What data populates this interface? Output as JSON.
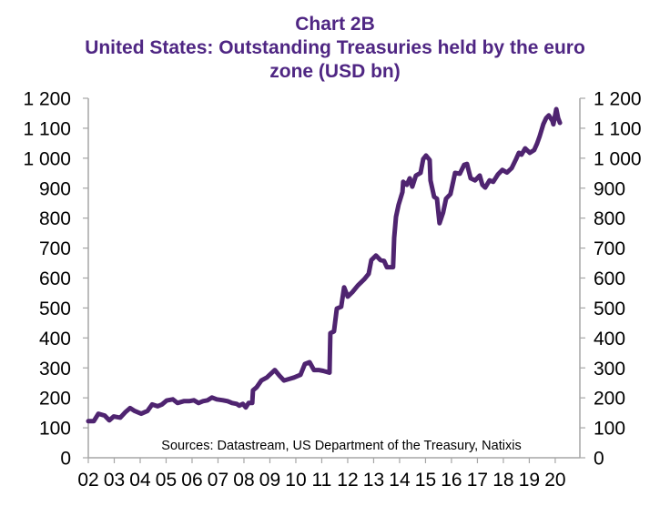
{
  "chart_data": {
    "type": "line",
    "title": "Chart 2B",
    "subtitle_line1": "United States: Outstanding Treasuries held by the euro",
    "subtitle_line2": "zone (USD bn)",
    "xlabel": "",
    "ylabel": "",
    "ylim": [
      0,
      1200
    ],
    "xlim": [
      2002,
      2020.95
    ],
    "grid": false,
    "y_ticks": [
      0,
      100,
      200,
      300,
      400,
      500,
      600,
      700,
      800,
      900,
      1000,
      1100,
      1200
    ],
    "y_tick_labels": [
      "0",
      "100",
      "200",
      "300",
      "400",
      "500",
      "600",
      "700",
      "800",
      "900",
      "1 000",
      "1 100",
      "1 200"
    ],
    "x_ticks": [
      2002,
      2003,
      2004,
      2005,
      2006,
      2007,
      2008,
      2009,
      2010,
      2011,
      2012,
      2013,
      2014,
      2015,
      2016,
      2017,
      2018,
      2019,
      2020
    ],
    "x_tick_labels": [
      "02",
      "03",
      "04",
      "05",
      "06",
      "07",
      "08",
      "09",
      "10",
      "11",
      "12",
      "13",
      "14",
      "15",
      "16",
      "17",
      "18",
      "19",
      "20"
    ],
    "annotation": "Sources: Datastream, US Department of the Treasury, Natixis",
    "series": [
      {
        "name": "Outstanding Treasuries held by the euro zone",
        "color": "#4f2470",
        "x": [
          2002.0,
          2002.21,
          2002.39,
          2002.63,
          2002.81,
          2002.98,
          2003.23,
          2003.44,
          2003.61,
          2003.79,
          2004.04,
          2004.28,
          2004.46,
          2004.67,
          2004.84,
          2005.02,
          2005.26,
          2005.44,
          2005.68,
          2005.89,
          2006.07,
          2006.25,
          2006.42,
          2006.6,
          2006.77,
          2006.95,
          2007.19,
          2007.37,
          2007.54,
          2007.72,
          2007.82,
          2007.96,
          2008.07,
          2008.18,
          2008.32,
          2008.35,
          2008.49,
          2008.67,
          2008.88,
          2009.19,
          2009.37,
          2009.54,
          2009.75,
          2009.93,
          2010.18,
          2010.35,
          2010.53,
          2010.7,
          2010.88,
          2011.05,
          2011.3,
          2011.33,
          2011.47,
          2011.58,
          2011.75,
          2011.86,
          2012.0,
          2012.18,
          2012.39,
          2012.63,
          2012.81,
          2012.91,
          2013.09,
          2013.26,
          2013.4,
          2013.51,
          2013.75,
          2013.79,
          2013.86,
          2013.96,
          2014.11,
          2014.14,
          2014.28,
          2014.39,
          2014.49,
          2014.63,
          2014.81,
          2014.91,
          2015.02,
          2015.16,
          2015.19,
          2015.33,
          2015.44,
          2015.54,
          2015.68,
          2015.79,
          2015.96,
          2016.14,
          2016.32,
          2016.49,
          2016.6,
          2016.74,
          2016.91,
          2017.09,
          2017.19,
          2017.3,
          2017.47,
          2017.61,
          2017.79,
          2017.96,
          2018.14,
          2018.32,
          2018.49,
          2018.6,
          2018.7,
          2018.84,
          2019.02,
          2019.19,
          2019.3,
          2019.4,
          2019.54,
          2019.65,
          2019.75,
          2019.89,
          2019.93,
          2020.04,
          2020.11,
          2020.18
        ],
        "values": [
          122,
          122,
          147,
          141,
          125,
          138,
          134,
          153,
          166,
          156,
          147,
          156,
          178,
          172,
          178,
          191,
          195,
          183,
          189,
          189,
          192,
          183,
          189,
          192,
          201,
          195,
          192,
          189,
          183,
          180,
          174,
          180,
          168,
          183,
          183,
          225,
          235,
          258,
          268,
          293,
          274,
          258,
          263,
          268,
          277,
          313,
          319,
          293,
          293,
          290,
          284,
          416,
          422,
          498,
          504,
          569,
          538,
          553,
          575,
          595,
          614,
          660,
          675,
          660,
          657,
          636,
          636,
          734,
          804,
          844,
          887,
          921,
          911,
          933,
          905,
          942,
          951,
          997,
          1009,
          994,
          926,
          871,
          865,
          783,
          819,
          865,
          880,
          951,
          948,
          978,
          981,
          933,
          926,
          942,
          911,
          902,
          926,
          921,
          946,
          961,
          952,
          967,
          997,
          1018,
          1012,
          1033,
          1018,
          1027,
          1049,
          1073,
          1113,
          1134,
          1143,
          1125,
          1113,
          1164,
          1134,
          1118
        ]
      }
    ]
  },
  "colors": {
    "title": "#4f2683",
    "axis": "#a6a6a6",
    "line": "#4f2470"
  }
}
